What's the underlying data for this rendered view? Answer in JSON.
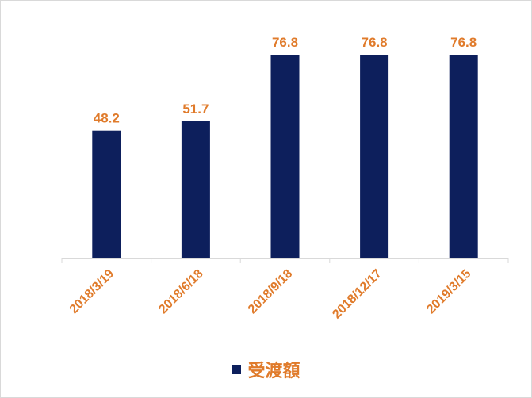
{
  "chart_data": {
    "type": "bar",
    "categories": [
      "2018/3/19",
      "2018/6/18",
      "2018/9/18",
      "2018/12/17",
      "2019/3/15"
    ],
    "series": [
      {
        "name": "受渡額",
        "values": [
          48.2,
          51.7,
          76.8,
          76.8,
          76.8
        ]
      }
    ],
    "data_labels": [
      "48.2",
      "51.7",
      "76.8",
      "76.8",
      "76.8"
    ],
    "ylim": [
      0,
      80
    ],
    "grid": false,
    "legend": "bottom",
    "bar_color": "#0D1F5C",
    "label_color": "#E07B2B",
    "axis_color": "#D9D9D9"
  },
  "legend": {
    "label": "受渡額"
  }
}
